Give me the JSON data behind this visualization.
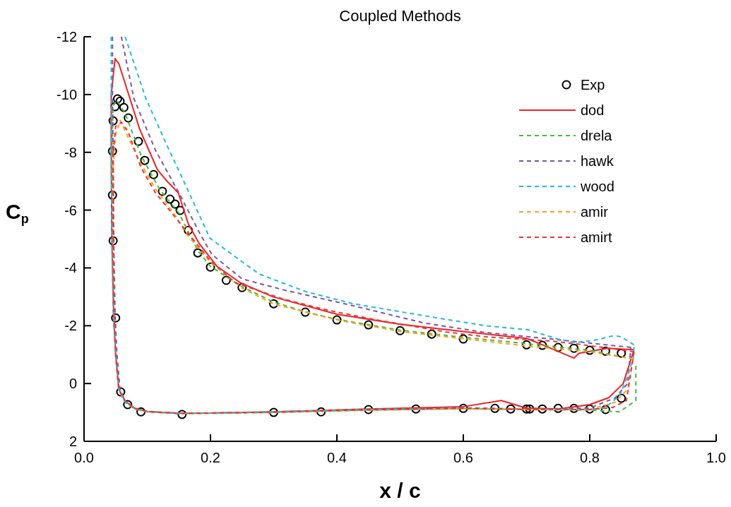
{
  "chart_data": {
    "type": "line",
    "title": "Coupled Methods",
    "xlabel": "x / c",
    "ylabel": "C$_{p}$",
    "xlim": [
      0,
      1
    ],
    "ylim": [
      2,
      -12
    ],
    "xticks": [
      {
        "value": 0,
        "label": "0.0"
      },
      {
        "value": 0.2,
        "label": "0.2"
      },
      {
        "value": 0.4,
        "label": "0.4"
      },
      {
        "value": 0.6,
        "label": "0.6"
      },
      {
        "value": 0.8,
        "label": "0.8"
      },
      {
        "value": 1,
        "label": "1.0"
      }
    ],
    "yticks": [
      -12,
      -10,
      -8,
      -6,
      -4,
      -2,
      0,
      2
    ],
    "legend": "top right",
    "series": [
      {
        "name": "Exp",
        "type": "scatter",
        "marker": "circle",
        "color": "#000000",
        "x": [
          0.85,
          0.825,
          0.8,
          0.775,
          0.75,
          0.725,
          0.7,
          0.6,
          0.55,
          0.5,
          0.45,
          0.4,
          0.35,
          0.3,
          0.25,
          0.225,
          0.2,
          0.18,
          0.165,
          0.152,
          0.144,
          0.136,
          0.124,
          0.11,
          0.096,
          0.086,
          0.07,
          0.063,
          0.057,
          0.053,
          0.049,
          0.046,
          0.045,
          0.045,
          0.046,
          0.05,
          0.058,
          0.069,
          0.09,
          0.155,
          0.3,
          0.375,
          0.45,
          0.525,
          0.6,
          0.65,
          0.675,
          0.7,
          0.705,
          0.725,
          0.75,
          0.775,
          0.8,
          0.825,
          0.85
        ],
        "values": [
          -1.05,
          -1.12,
          -1.15,
          -1.22,
          -1.25,
          -1.32,
          -1.34,
          -1.54,
          -1.71,
          -1.83,
          -2.03,
          -2.2,
          -2.47,
          -2.76,
          -3.32,
          -3.57,
          -4.03,
          -4.52,
          -5.3,
          -5.99,
          -6.21,
          -6.38,
          -6.65,
          -7.23,
          -7.72,
          -8.38,
          -9.19,
          -9.55,
          -9.77,
          -9.85,
          -9.58,
          -9.09,
          -8.04,
          -6.52,
          -4.94,
          -2.27,
          0.29,
          0.73,
          0.98,
          1.07,
          1,
          0.98,
          0.9,
          0.88,
          0.86,
          0.86,
          0.88,
          0.88,
          0.88,
          0.88,
          0.86,
          0.86,
          0.88,
          0.9,
          0.51
        ]
      },
      {
        "name": "dod",
        "line_style": "solid",
        "color": "#ee2222",
        "x": [
          0.043,
          0.049,
          0.055,
          0.088,
          0.116,
          0.133,
          0.149,
          0.165,
          0.182,
          0.21,
          0.247,
          0.299,
          0.4,
          0.5,
          0.6,
          0.7,
          0.731,
          0.775,
          0.783,
          0.828,
          0.87,
          null,
          0.043,
          0.043,
          0.044,
          0.047,
          0.05,
          0.055,
          0.065,
          0.08,
          0.1,
          0.15,
          0.2,
          0.3,
          0.45,
          0.6,
          0.66,
          0.7,
          0.75,
          0.8,
          0.83,
          0.853,
          0.87
        ],
        "values": [
          -10,
          -11.24,
          -11.07,
          -8.8,
          -7.4,
          -6.96,
          -6.6,
          -5.52,
          -4.85,
          -4.06,
          -3.49,
          -3,
          -2.4,
          -2.05,
          -1.8,
          -1.56,
          -1.29,
          -0.88,
          -1.05,
          -1.22,
          -1.17,
          null,
          -10,
          -8,
          -5,
          -2.3,
          -1,
          0.2,
          0.6,
          0.85,
          0.97,
          1.03,
          1.02,
          0.98,
          0.88,
          0.8,
          0.59,
          0.85,
          0.88,
          0.73,
          0.49,
          0,
          -1.17
        ]
      },
      {
        "name": "drela",
        "line_style": "dashed",
        "color": "#44bb44",
        "x": [
          0.044,
          0.046,
          0.052,
          0.065,
          0.09,
          0.12,
          0.15,
          0.18,
          0.2,
          0.25,
          0.3,
          0.35,
          0.4,
          0.5,
          0.6,
          0.7,
          0.8,
          0.869,
          null,
          0.044,
          0.045,
          0.047,
          0.05,
          0.055,
          0.065,
          0.08,
          0.1,
          0.15,
          0.2,
          0.3,
          0.45,
          0.6,
          0.7,
          0.8,
          0.847,
          0.873,
          0.873
        ],
        "values": [
          -8,
          -9.6,
          -9.8,
          -9.35,
          -7.9,
          -6.7,
          -5.9,
          -4.6,
          -4.05,
          -3.35,
          -2.82,
          -2.48,
          -2.22,
          -1.85,
          -1.6,
          -1.38,
          -1.15,
          -0.85,
          null,
          -8,
          -5,
          -2.5,
          -1,
          0.25,
          0.65,
          0.88,
          0.98,
          1.04,
          1.03,
          1,
          0.92,
          0.87,
          0.9,
          0.92,
          0.98,
          0.59,
          -0.64
        ]
      },
      {
        "name": "hawk",
        "line_style": "dashed",
        "color": "#7e52a8",
        "x": [
          0.059,
          0.079,
          0.113,
          0.15,
          0.183,
          0.202,
          0.25,
          0.314,
          0.426,
          0.537,
          0.63,
          0.739,
          0.865,
          null,
          0.045,
          0.045,
          0.046,
          0.047,
          0.049,
          0.052,
          0.057,
          0.066,
          0.08,
          0.1,
          0.15,
          0.2,
          0.3,
          0.45,
          0.6,
          0.7,
          0.8,
          0.84,
          0.86,
          0.865
        ],
        "values": [
          -12,
          -9.85,
          -8.07,
          -6.6,
          -5.2,
          -4.47,
          -3.62,
          -3.25,
          -2.69,
          -2.1,
          -1.78,
          -1.54,
          -1.25,
          null,
          -12,
          -10,
          -8,
          -5,
          -2.5,
          -1,
          0.22,
          0.62,
          0.86,
          0.97,
          1.03,
          1.02,
          0.98,
          0.9,
          0.84,
          0.88,
          0.85,
          0.5,
          0,
          -1.25
        ]
      },
      {
        "name": "wood",
        "line_style": "dashed",
        "color": "#22bbdd",
        "x": [
          0.065,
          0.098,
          0.132,
          0.158,
          0.199,
          0.249,
          0.277,
          0.351,
          0.426,
          0.537,
          0.635,
          0.702,
          0.75,
          0.776,
          0.806,
          0.839,
          0.85,
          0.87,
          null,
          0.043,
          0.043,
          0.044,
          0.046,
          0.05,
          0.055,
          0.065,
          0.08,
          0.1,
          0.15,
          0.2,
          0.3,
          0.45,
          0.6,
          0.7,
          0.8,
          0.825,
          0.847,
          0.858,
          0.869,
          0.87
        ],
        "values": [
          -12,
          -9.85,
          -8.2,
          -6.99,
          -5.03,
          -4.23,
          -3.79,
          -3.18,
          -2.76,
          -2.35,
          -2,
          -1.86,
          -1.54,
          -1.42,
          -1.49,
          -1.66,
          -1.61,
          -1.34,
          null,
          -12,
          -8,
          -5,
          -2.5,
          -1,
          0.22,
          0.63,
          0.87,
          0.97,
          1.03,
          1.02,
          0.98,
          0.9,
          0.86,
          0.9,
          0.9,
          0.83,
          0.42,
          -0.15,
          -0.88,
          -1.34
        ]
      },
      {
        "name": "amir",
        "line_style": "dashed",
        "color": "#ff9f1c",
        "x": [
          0.046,
          0.05,
          0.057,
          0.087,
          0.113,
          0.146,
          0.161,
          0.2,
          0.25,
          0.3,
          0.4,
          0.5,
          0.6,
          0.7,
          0.8,
          0.869,
          null,
          0.046,
          0.046,
          0.047,
          0.05,
          0.055,
          0.065,
          0.08,
          0.1,
          0.15,
          0.2,
          0.3,
          0.45,
          0.6,
          0.7,
          0.8,
          0.84,
          0.86,
          0.869
        ],
        "values": [
          -7.5,
          -8.6,
          -9.11,
          -7.72,
          -6.74,
          -5.77,
          -5.2,
          -4.2,
          -3.3,
          -2.75,
          -2.2,
          -1.8,
          -1.55,
          -1.3,
          -1.1,
          -0.85,
          null,
          -7.5,
          -5,
          -2.5,
          -1,
          0.22,
          0.62,
          0.87,
          0.98,
          1.04,
          1.03,
          1,
          0.92,
          0.87,
          0.9,
          0.9,
          0.65,
          0.2,
          -0.85
        ]
      },
      {
        "name": "amirt",
        "line_style": "dashed",
        "color": "#ee3333",
        "x": [
          0.046,
          0.05,
          0.059,
          0.07,
          0.09,
          0.113,
          0.158,
          0.2,
          0.239,
          0.314,
          0.389,
          0.463,
          0.574,
          0.638,
          0.739,
          0.79,
          0.87,
          null,
          0.046,
          0.046,
          0.047,
          0.05,
          0.055,
          0.065,
          0.08,
          0.1,
          0.15,
          0.2,
          0.3,
          0.45,
          0.6,
          0.7,
          0.8,
          0.836,
          0.858,
          0.87
        ],
        "values": [
          -8,
          -8.9,
          -9.04,
          -8.7,
          -7.48,
          -6.6,
          -5.38,
          -4.25,
          -3.49,
          -2.93,
          -2.52,
          -2.2,
          -1.78,
          -1.61,
          -1.47,
          -1.34,
          -1.1,
          null,
          -8,
          -5,
          -2.5,
          -1,
          0.21,
          0.61,
          0.86,
          0.97,
          1.03,
          1.02,
          0.99,
          0.91,
          0.86,
          0.89,
          0.9,
          0.83,
          0.59,
          -1.1
        ]
      }
    ]
  }
}
